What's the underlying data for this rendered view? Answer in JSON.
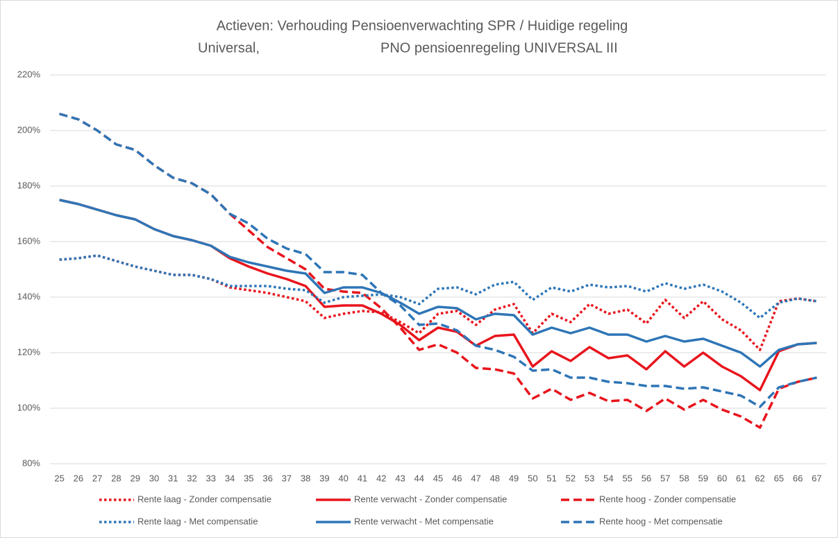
{
  "chart_data": {
    "type": "line",
    "title": "Actieven: Verhouding Pensioenverwachting SPR / Huidige regeling",
    "subtitle": [
      "Universal,",
      "PNO pensioenregeling UNIVERSAL III"
    ],
    "categories": [
      "25",
      "26",
      "27",
      "28",
      "29",
      "30",
      "31",
      "32",
      "33",
      "34",
      "35",
      "36",
      "37",
      "38",
      "39",
      "40",
      "41",
      "42",
      "43",
      "44",
      "45",
      "46",
      "47",
      "48",
      "49",
      "50",
      "51",
      "52",
      "53",
      "54",
      "55",
      "56",
      "57",
      "58",
      "59",
      "60",
      "61",
      "62",
      "65",
      "66",
      "67"
    ],
    "ylim": [
      80,
      220
    ],
    "yticks": [
      {
        "value": 80,
        "label": "80%"
      },
      {
        "value": 100,
        "label": "100%"
      },
      {
        "value": 120,
        "label": "120%"
      },
      {
        "value": 140,
        "label": "140%"
      },
      {
        "value": 160,
        "label": "160%"
      },
      {
        "value": 180,
        "label": "180%"
      },
      {
        "value": 200,
        "label": "200%"
      },
      {
        "value": 220,
        "label": "220%"
      }
    ],
    "grid": true,
    "legend": "bottom",
    "series": [
      {
        "name": "Rente laag - Zonder compensatie",
        "color": "#e8141c",
        "style": "dotted",
        "values": [
          153.5,
          154,
          155,
          153,
          151,
          149.5,
          148,
          148,
          146.5,
          143.5,
          142.5,
          141.5,
          140,
          138.5,
          132.5,
          134,
          135,
          134.5,
          131,
          127,
          134,
          135,
          130,
          135.5,
          137.5,
          127,
          134,
          131,
          137.5,
          134,
          135.5,
          130.5,
          139,
          132.5,
          138.5,
          132,
          128,
          121,
          138.5,
          139.5,
          138.5
        ]
      },
      {
        "name": "Rente verwacht - Zonder compensatie",
        "color": "#e8141c",
        "style": "solid",
        "values": [
          175,
          173.5,
          171.5,
          169.5,
          168,
          164.5,
          162,
          160.5,
          158.5,
          154,
          151,
          148.5,
          146.5,
          144,
          136.5,
          137,
          137,
          134,
          130,
          124.5,
          129,
          127.5,
          122.5,
          126,
          126.5,
          115,
          120.5,
          117,
          122,
          118,
          119,
          114,
          120.5,
          115,
          120,
          115,
          111.5,
          106.5,
          120.5,
          123,
          123.5
        ]
      },
      {
        "name": "Rente hoog - Zonder compensatie",
        "color": "#e8141c",
        "style": "dashed",
        "values": [
          206,
          204,
          200,
          195,
          193,
          187.5,
          183,
          181,
          177,
          170,
          164,
          158,
          154,
          150,
          143,
          142,
          141.5,
          136,
          129,
          121,
          123,
          120,
          114.5,
          114,
          112.5,
          103.5,
          107,
          103,
          105.5,
          102.5,
          103,
          99,
          103.5,
          99.5,
          103,
          99.5,
          97,
          93,
          107,
          109.5,
          111
        ]
      },
      {
        "name": "Rente laag - Met compensatie",
        "color": "#2e75b6",
        "style": "dotted",
        "values": [
          153.5,
          154,
          155,
          153,
          151,
          149.5,
          148,
          148,
          146.5,
          144,
          144,
          144,
          143,
          142.5,
          138,
          140,
          140.5,
          141,
          140,
          137.5,
          143,
          143.5,
          141,
          144.5,
          145.5,
          139,
          143.5,
          142,
          144.5,
          143.5,
          144,
          142,
          145,
          143,
          144.5,
          142,
          138,
          132.5,
          138,
          139.5,
          138.5
        ]
      },
      {
        "name": "Rente verwacht - Met compensatie",
        "color": "#2e75b6",
        "style": "solid",
        "values": [
          175,
          173.5,
          171.5,
          169.5,
          168,
          164.5,
          162,
          160.5,
          158.5,
          154.5,
          152.5,
          151,
          149.5,
          148.5,
          141.5,
          143.5,
          143.5,
          141.5,
          138,
          134,
          136.5,
          136,
          132,
          134,
          133.5,
          126.5,
          129,
          127,
          129,
          126.5,
          126.5,
          124,
          126,
          124,
          125,
          122.5,
          120,
          115,
          121,
          123,
          123.5
        ]
      },
      {
        "name": "Rente hoog - Met compensatie",
        "color": "#2e75b6",
        "style": "dashed",
        "values": [
          206,
          204,
          200,
          195,
          193,
          187.5,
          183,
          181,
          177,
          170,
          166.5,
          161,
          157.5,
          155.5,
          149,
          149,
          148,
          141.5,
          137,
          130,
          130.5,
          128,
          122.5,
          121,
          118.5,
          113.5,
          114,
          111,
          111,
          109.5,
          109,
          108,
          108,
          107,
          107.5,
          106,
          104.5,
          100.5,
          107.5,
          109.5,
          111
        ]
      }
    ]
  }
}
